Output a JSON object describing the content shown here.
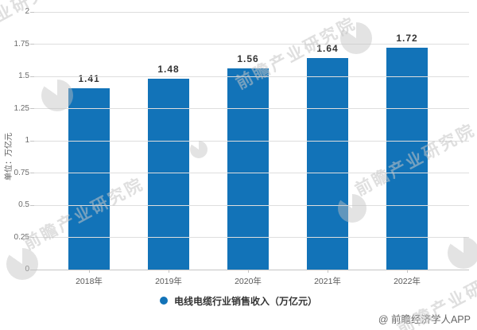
{
  "chart_data": {
    "type": "bar",
    "title": "",
    "categories": [
      "2018年",
      "2019年",
      "2020年",
      "2021年",
      "2022年"
    ],
    "values": [
      1.41,
      1.48,
      1.56,
      1.64,
      1.72
    ],
    "value_labels": [
      "1.41",
      "1.48",
      "1.56",
      "1.64",
      "1.72"
    ],
    "series_name": "电线电缆行业销售收入（万亿元）",
    "xlabel": "",
    "ylabel": "单位：万亿元",
    "ylim": [
      0,
      2
    ],
    "yticks": [
      0,
      0.25,
      0.5,
      0.75,
      1,
      1.25,
      1.5,
      1.75,
      2
    ],
    "ytick_labels": [
      "0",
      "0.25",
      "0.5",
      "0.75",
      "1",
      "1.25",
      "1.5",
      "1.75",
      "2"
    ],
    "grid": true,
    "legend_position": "bottom-center",
    "bar_color": "#1273B8"
  },
  "legend": {
    "marker": "circle",
    "marker_color": "#1273B8",
    "label": "电线电缆行业销售收入（万亿元）"
  },
  "y_axis": {
    "unit_label": "单位：万亿元"
  },
  "watermark": {
    "text": "前瞻产业研究院"
  },
  "footer": {
    "credit": "@ 前瞻经济学人APP"
  },
  "colors": {
    "bar": "#1273B8",
    "gridline": "#DEDEDE",
    "axis_line": "#C4C4C4",
    "tick_text": "#6B6B6B",
    "value_label_text": "#333333",
    "watermark": "#C5C5C5"
  }
}
